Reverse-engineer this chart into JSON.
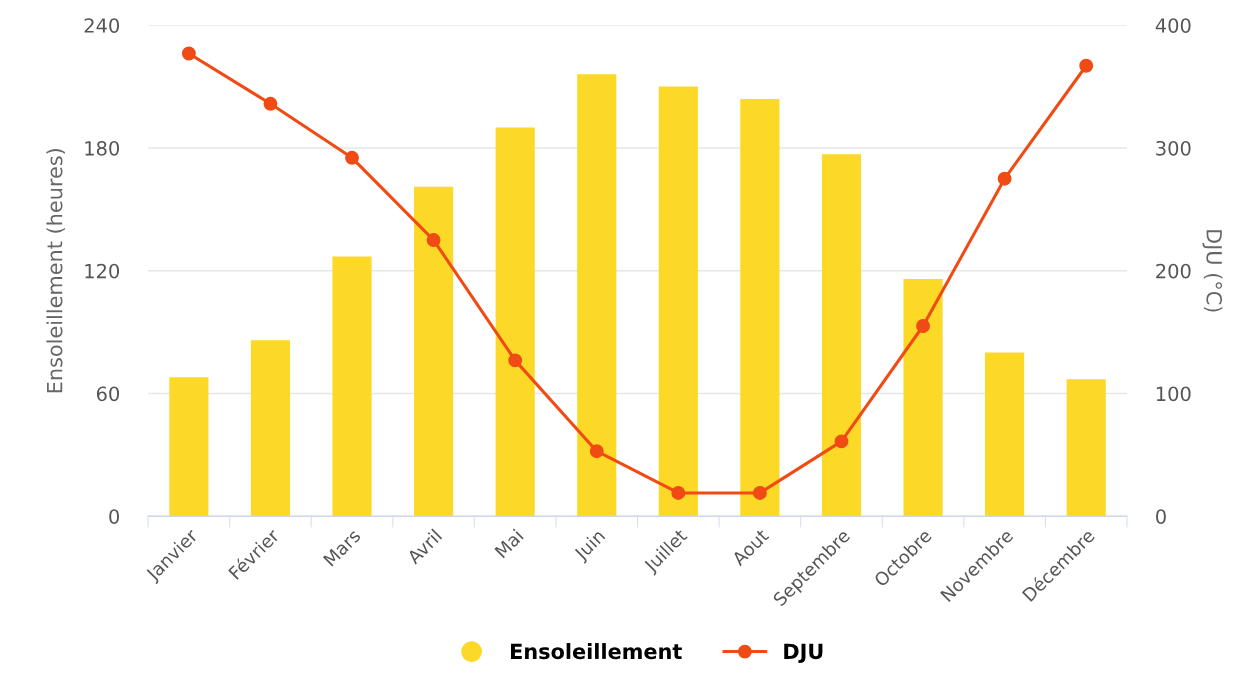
{
  "chart_data": {
    "type": "bar",
    "categories": [
      "Janvier",
      "Février",
      "Mars",
      "Avril",
      "Mai",
      "Juin",
      "Juillet",
      "Aout",
      "Septembre",
      "Octobre",
      "Novembre",
      "Décembre"
    ],
    "ylabel": "Ensoleillement (heures)",
    "y2label": "DJU (°C)",
    "ylim": [
      0,
      240
    ],
    "yticks": [
      0,
      60,
      120,
      180,
      240
    ],
    "y2lim": [
      0,
      400
    ],
    "y2ticks": [
      0,
      100,
      200,
      300,
      400
    ],
    "grid": "y",
    "legend": "bottom",
    "marker": "circle",
    "line_style": "solid",
    "series": [
      {
        "name": "Ensoleillement",
        "color": "#fbd926",
        "values": [
          68,
          86,
          127,
          161,
          190,
          216,
          210,
          204,
          177,
          116,
          80,
          67
        ]
      },
      {
        "name": "DJU",
        "type": "line",
        "axis": "y2",
        "color": "#f04b14",
        "values": [
          377,
          336,
          292,
          225,
          127,
          53,
          19,
          19,
          61,
          155,
          275,
          367
        ]
      }
    ]
  }
}
